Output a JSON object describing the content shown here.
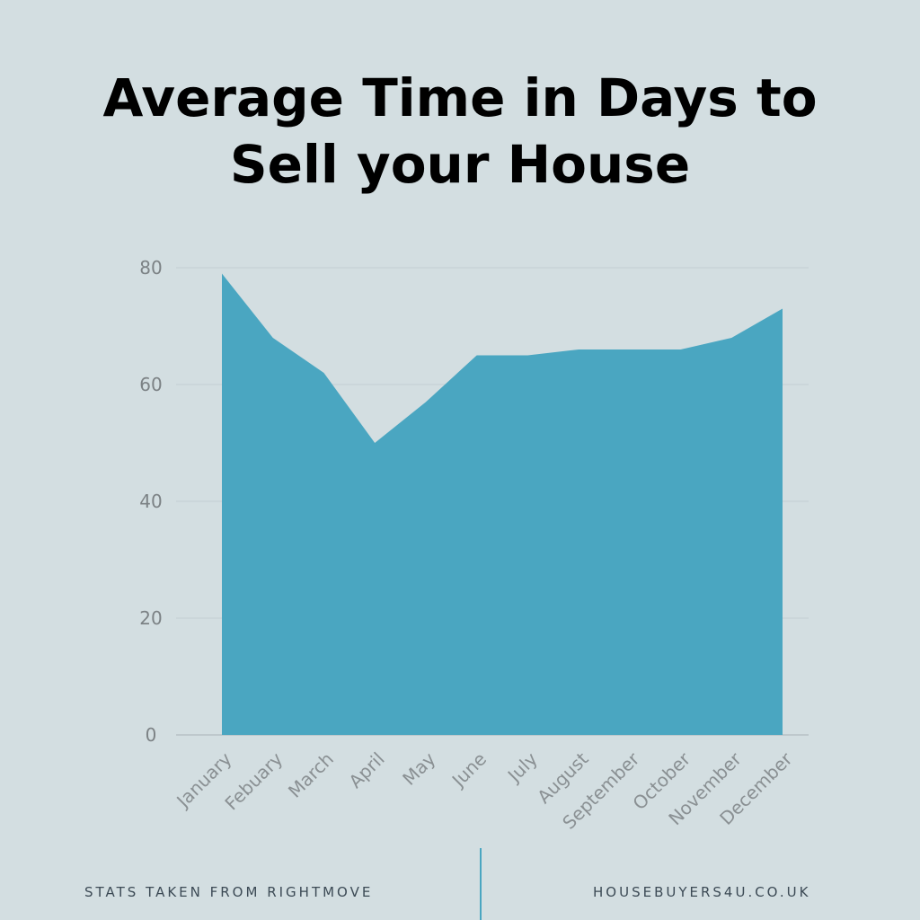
{
  "header": {
    "title_line1": "Average Time in Days to",
    "title_line2": "Sell your House"
  },
  "chart_data": {
    "type": "area",
    "title": "Average Time in Days to Sell your House",
    "categories": [
      "January",
      "Febuary",
      "March",
      "April",
      "May",
      "June",
      "July",
      "August",
      "September",
      "October",
      "November",
      "December"
    ],
    "values": [
      79,
      68,
      62,
      50,
      57,
      65,
      65,
      66,
      66,
      66,
      68,
      73
    ],
    "yticks": [
      "0",
      "20",
      "40",
      "60",
      "80"
    ],
    "ylim": [
      0,
      80
    ],
    "grid": true,
    "color": "#4aa6c1"
  },
  "footer": {
    "left_text": "STATS TAKEN FROM RIGHTMOVE",
    "right_text": "HOUSEBUYERS4U.CO.UK"
  }
}
